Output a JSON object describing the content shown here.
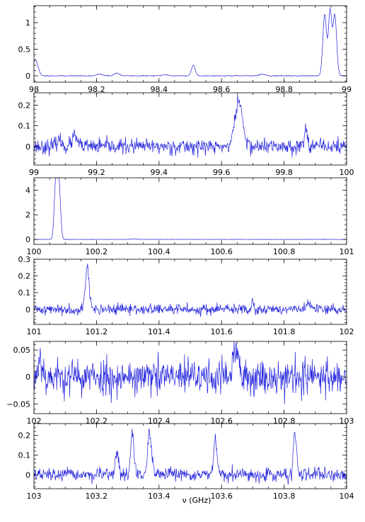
{
  "figure": {
    "xlabel": "ν (GHz)",
    "line_color": "#2222dd"
  },
  "chart_data": [
    {
      "type": "line",
      "xlim": [
        98,
        99
      ],
      "ylim": [
        -0.12,
        1.32
      ],
      "xticks": [
        98,
        98.2,
        98.4,
        98.6,
        98.8,
        99
      ],
      "xtick_labels": [
        "98",
        "98.2",
        "98.4",
        "98.6",
        "98.8",
        "99"
      ],
      "yticks": [
        0,
        0.5,
        1
      ],
      "ytick_labels": [
        "0",
        "0.5",
        "1"
      ],
      "noise": 0.004,
      "seed": 11,
      "features": [
        {
          "center": 98.005,
          "height": 0.3,
          "width": 0.008
        },
        {
          "center": 98.21,
          "height": 0.03,
          "width": 0.01
        },
        {
          "center": 98.265,
          "height": 0.05,
          "width": 0.008
        },
        {
          "center": 98.42,
          "height": 0.02,
          "width": 0.01
        },
        {
          "center": 98.51,
          "height": 0.2,
          "width": 0.006
        },
        {
          "center": 98.73,
          "height": 0.03,
          "width": 0.01
        },
        {
          "center": 98.93,
          "height": 1.15,
          "width": 0.006
        },
        {
          "center": 98.947,
          "height": 1.2,
          "width": 0.005
        },
        {
          "center": 98.962,
          "height": 1.15,
          "width": 0.006
        }
      ]
    },
    {
      "type": "line",
      "xlim": [
        99,
        100
      ],
      "ylim": [
        -0.09,
        0.26
      ],
      "xticks": [
        99,
        99.2,
        99.4,
        99.6,
        99.8,
        100
      ],
      "xtick_labels": [
        "99",
        "99.2",
        "99.4",
        "99.6",
        "99.8",
        "100"
      ],
      "yticks": [
        0,
        0.1,
        0.2
      ],
      "ytick_labels": [
        "0",
        "0.1",
        "0.2"
      ],
      "noise": 0.018,
      "seed": 23,
      "features": [
        {
          "center": 99.08,
          "height": 0.03,
          "width": 0.008
        },
        {
          "center": 99.13,
          "height": 0.05,
          "width": 0.008
        },
        {
          "center": 99.655,
          "height": 0.22,
          "width": 0.012
        },
        {
          "center": 99.87,
          "height": 0.08,
          "width": 0.006
        }
      ]
    },
    {
      "type": "line",
      "xlim": [
        100,
        101
      ],
      "ylim": [
        -0.4,
        5.0
      ],
      "xticks": [
        100,
        100.2,
        100.4,
        100.6,
        100.8,
        101
      ],
      "xtick_labels": [
        "100",
        "100.2",
        "100.4",
        "100.6",
        "100.8",
        "101"
      ],
      "yticks": [
        0,
        2,
        4
      ],
      "ytick_labels": [
        "0",
        "2",
        "4"
      ],
      "noise": 0.01,
      "seed": 37,
      "features": [
        {
          "center": 100.07,
          "height": 4.7,
          "width": 0.005
        },
        {
          "center": 100.08,
          "height": 4.4,
          "width": 0.005
        },
        {
          "center": 100.32,
          "height": 0.04,
          "width": 0.01
        }
      ]
    },
    {
      "type": "line",
      "xlim": [
        101,
        102
      ],
      "ylim": [
        -0.09,
        0.3
      ],
      "xticks": [
        101,
        101.2,
        101.4,
        101.6,
        101.8,
        102
      ],
      "xtick_labels": [
        "101",
        "101.2",
        "101.4",
        "101.6",
        "101.8",
        "102"
      ],
      "yticks": [
        0,
        0.1,
        0.2,
        0.3
      ],
      "ytick_labels": [
        "0",
        "0.1",
        "0.2",
        "0.3"
      ],
      "noise": 0.016,
      "seed": 41,
      "features": [
        {
          "center": 101.17,
          "height": 0.26,
          "width": 0.006
        },
        {
          "center": 101.7,
          "height": 0.07,
          "width": 0.003
        },
        {
          "center": 101.88,
          "height": 0.03,
          "width": 0.008
        }
      ]
    },
    {
      "type": "line",
      "xlim": [
        102,
        103
      ],
      "ylim": [
        -0.068,
        0.066
      ],
      "xticks": [
        102,
        102.2,
        102.4,
        102.6,
        102.8,
        103
      ],
      "xtick_labels": [
        "102",
        "102.2",
        "102.4",
        "102.6",
        "102.8",
        "103"
      ],
      "yticks": [
        -0.05,
        0,
        0.05
      ],
      "ytick_labels": [
        "−0.05",
        "0",
        "0.05"
      ],
      "noise": 0.017,
      "seed": 53,
      "features": [
        {
          "center": 102.02,
          "height": 0.04,
          "width": 0.006
        },
        {
          "center": 102.645,
          "height": 0.05,
          "width": 0.008
        }
      ]
    },
    {
      "type": "line",
      "xlim": [
        103,
        104
      ],
      "ylim": [
        -0.07,
        0.26
      ],
      "xticks": [
        103,
        103.2,
        103.4,
        103.6,
        103.8,
        104
      ],
      "xtick_labels": [
        "103",
        "103.2",
        "103.4",
        "103.6",
        "103.8",
        "104"
      ],
      "yticks": [
        0,
        0.1,
        0.2
      ],
      "ytick_labels": [
        "0",
        "0.1",
        "0.2"
      ],
      "noise": 0.016,
      "seed": 67,
      "features": [
        {
          "center": 103.265,
          "height": 0.12,
          "width": 0.005
        },
        {
          "center": 103.315,
          "height": 0.22,
          "width": 0.005
        },
        {
          "center": 103.37,
          "height": 0.21,
          "width": 0.006
        },
        {
          "center": 103.58,
          "height": 0.18,
          "width": 0.005
        },
        {
          "center": 103.835,
          "height": 0.22,
          "width": 0.005
        }
      ]
    }
  ]
}
